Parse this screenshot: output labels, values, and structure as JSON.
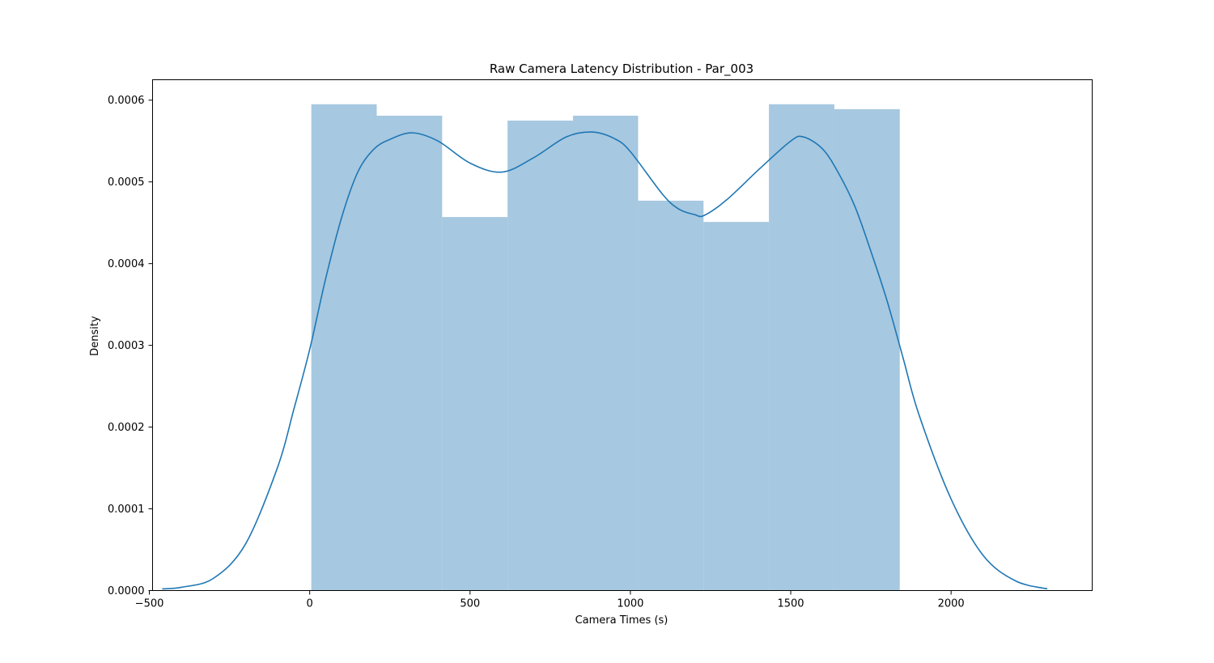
{
  "chart_data": {
    "type": "bar",
    "title": "Raw Camera Latency Distribution - Par_003",
    "xlabel": "Camera Times (s)",
    "ylabel": "Density",
    "xlim": [
      -490,
      2440
    ],
    "ylim": [
      0,
      0.000625
    ],
    "xticks": [
      {
        "value": -500,
        "label": "−500"
      },
      {
        "value": 0,
        "label": "0"
      },
      {
        "value": 500,
        "label": "500"
      },
      {
        "value": 1000,
        "label": "1000"
      },
      {
        "value": 1500,
        "label": "1500"
      },
      {
        "value": 2000,
        "label": "2000"
      }
    ],
    "yticks": [
      {
        "value": 0,
        "label": "0.0000"
      },
      {
        "value": 0.0001,
        "label": "0.0001"
      },
      {
        "value": 0.0002,
        "label": "0.0002"
      },
      {
        "value": 0.0003,
        "label": "0.0003"
      },
      {
        "value": 0.0004,
        "label": "0.0004"
      },
      {
        "value": 0.0005,
        "label": "0.0005"
      },
      {
        "value": 0.0006,
        "label": "0.0006"
      }
    ],
    "grid": false,
    "legend": "none",
    "colors": {
      "bars": "#a6c8e0",
      "kde_line": "#1f77b4"
    },
    "histogram": {
      "bin_edges": [
        5,
        209,
        413,
        617,
        821,
        1024,
        1228,
        1432,
        1636,
        1840
      ],
      "values": [
        0.000595,
        0.000581,
        0.000457,
        0.000575,
        0.000581,
        0.000477,
        0.000451,
        0.000595,
        0.000589
      ]
    },
    "series": [
      {
        "type": "line",
        "x": [
          -460,
          -400,
          -300,
          -200,
          -100,
          -50,
          0,
          50,
          100,
          150,
          200,
          250,
          320,
          400,
          500,
          600,
          700,
          800,
          880,
          950,
          1000,
          1100,
          1150,
          1200,
          1230,
          1300,
          1400,
          1500,
          1540,
          1600,
          1650,
          1700,
          1750,
          1800,
          1850,
          1900,
          2000,
          2100,
          2200,
          2300
        ],
        "y": [
          2e-06,
          4e-06,
          1.5e-05,
          5.7e-05,
          0.000151,
          0.000221,
          0.000295,
          0.000382,
          0.000457,
          0.000512,
          0.00054,
          0.000552,
          0.00056,
          0.00055,
          0.000523,
          0.000512,
          0.00053,
          0.000555,
          0.000561,
          0.000553,
          0.000537,
          0.000485,
          0.000467,
          0.00046,
          0.000459,
          0.000478,
          0.000515,
          0.00055,
          0.000555,
          0.00054,
          0.00051,
          0.00047,
          0.000415,
          0.000355,
          0.000285,
          0.000215,
          0.000112,
          4.3e-05,
          1.2e-05,
          2e-06
        ]
      }
    ]
  }
}
